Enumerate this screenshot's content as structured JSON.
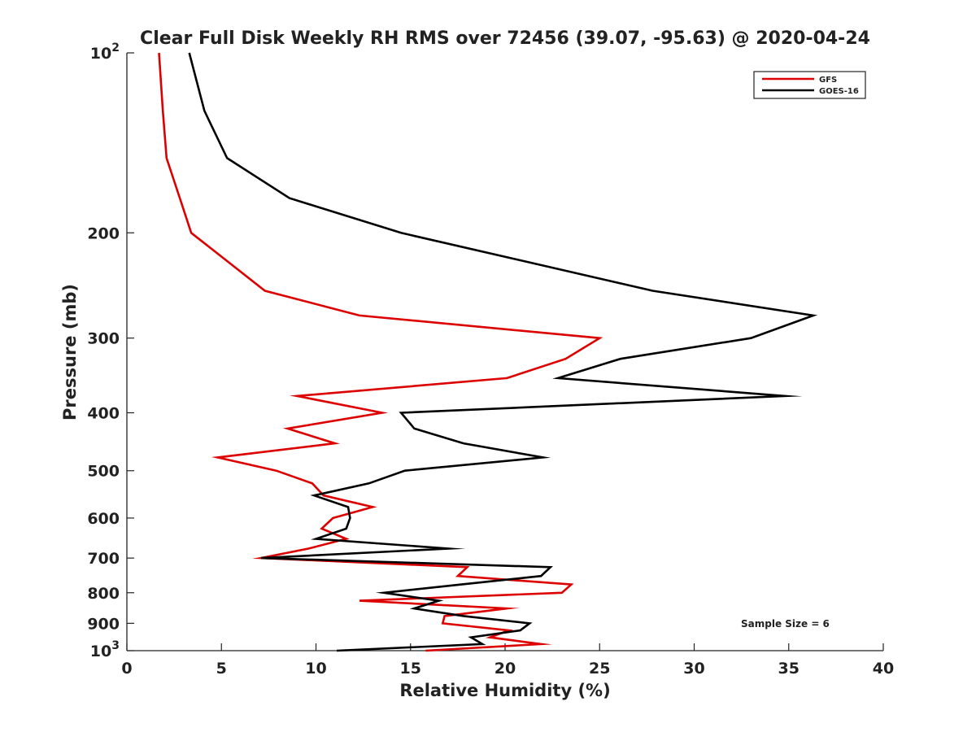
{
  "chart_data": {
    "type": "line",
    "title": "Clear Full Disk Weekly RH RMS over 72456 (39.07, -95.63) @ 2020-04-24",
    "xlabel": "Relative Humidity (%)",
    "ylabel": "Pressure (mb)",
    "xlim": [
      0,
      40
    ],
    "ylim": [
      100,
      1000
    ],
    "yscale": "log",
    "yreversed": true,
    "xticks": [
      0,
      5,
      10,
      15,
      20,
      25,
      30,
      35,
      40
    ],
    "xtick_labels": [
      "0",
      "5",
      "10",
      "15",
      "20",
      "25",
      "30",
      "35",
      "40"
    ],
    "yticks": [
      100,
      200,
      300,
      400,
      500,
      600,
      700,
      800,
      900,
      1000
    ],
    "ytick_labels": [
      {
        "base": "10",
        "exp": "2"
      },
      {
        "text": "200"
      },
      {
        "text": "300"
      },
      {
        "text": "400"
      },
      {
        "text": "500"
      },
      {
        "text": "600"
      },
      {
        "text": "700"
      },
      {
        "text": "800"
      },
      {
        "text": "900"
      },
      {
        "base": "10",
        "exp": "3"
      }
    ],
    "legend": {
      "location": "top-right",
      "entries": [
        "GFS",
        "GOES-16"
      ]
    },
    "annotation": "Sample Size = 6",
    "series": [
      {
        "name": "GFS",
        "color": "#dd0000",
        "pressure": [
          100,
          125,
          150,
          175,
          200,
          250,
          275,
          300,
          325,
          350,
          375,
          400,
          425,
          450,
          475,
          500,
          525,
          550,
          575,
          600,
          625,
          650,
          675,
          700,
          725,
          750,
          775,
          800,
          825,
          850,
          875,
          900,
          925,
          950,
          975,
          1000
        ],
        "values": [
          1.7,
          1.9,
          2.1,
          2.8,
          3.4,
          7.3,
          12.3,
          25.0,
          23.2,
          20.1,
          9.0,
          13.5,
          8.5,
          11.0,
          4.8,
          7.9,
          9.8,
          10.4,
          13.0,
          10.9,
          10.3,
          11.6,
          9.6,
          7.1,
          18.0,
          17.5,
          23.5,
          23.0,
          12.3,
          20.1,
          16.8,
          16.7,
          20.2,
          19.2,
          21.9,
          15.8
        ]
      },
      {
        "name": "GOES-16",
        "color": "#000000",
        "pressure": [
          100,
          125,
          150,
          175,
          200,
          250,
          275,
          300,
          325,
          350,
          375,
          400,
          425,
          450,
          475,
          500,
          525,
          550,
          575,
          600,
          625,
          650,
          675,
          700,
          725,
          750,
          775,
          800,
          825,
          850,
          875,
          900,
          925,
          950,
          975,
          1000
        ],
        "values": [
          3.3,
          4.1,
          5.3,
          8.6,
          14.5,
          27.8,
          36.3,
          33.0,
          26.1,
          22.8,
          34.8,
          14.5,
          15.2,
          17.8,
          22.0,
          14.7,
          12.8,
          9.9,
          11.7,
          11.8,
          11.6,
          10.0,
          17.0,
          7.1,
          22.4,
          21.9,
          17.7,
          13.6,
          16.5,
          15.2,
          17.8,
          21.3,
          20.8,
          18.2,
          18.8,
          11.1
        ]
      }
    ]
  }
}
